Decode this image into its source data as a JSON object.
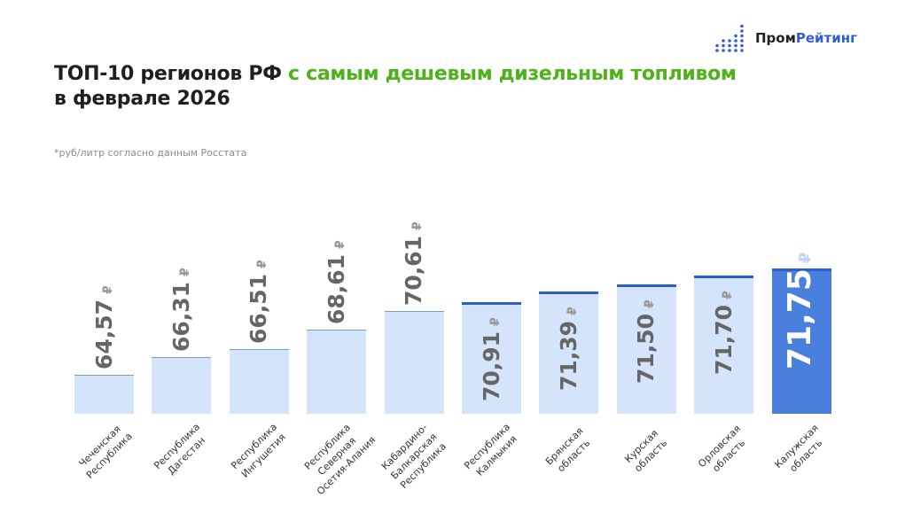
{
  "header": {
    "title_part1": "ТОП-10 регионов РФ ",
    "title_accent": "с самым дешевым дизельным топливом",
    "title_line2": "в феврале 2026",
    "note": "*руб/литр согласно данным Росстата"
  },
  "logo": {
    "part1": "Пром",
    "part2": "Рейтинг",
    "icon": "bar-dots-icon"
  },
  "colors": {
    "accent": "#4db31a",
    "bar": "#d3e4fb",
    "bar_highlight": "#4a80dd",
    "bar_top": "#2c5ed1"
  },
  "chart_data": {
    "type": "bar",
    "title": "ТОП-10 регионов РФ с самым дешевым дизельным топливом в феврале 2026",
    "unit": "₽",
    "categories": [
      "Чеченская\nРеспублика",
      "Республика\nДагестан",
      "Республика\nИнгушетия",
      "Республика\nСеверная\nОсетия-Алания",
      "Кабардино-\nБалкарская\nРеспублика",
      "Республика\nКалмыкия",
      "Брянская\nобласть",
      "Курская\nобласть",
      "Орловская\nобласть",
      "Калужская\nобласть"
    ],
    "values": [
      64.57,
      66.31,
      66.51,
      68.61,
      70.61,
      70.91,
      71.39,
      71.5,
      71.7,
      71.75
    ],
    "labels": [
      "64,57",
      "66,31",
      "66,51",
      "68,61",
      "70,61",
      "70,91",
      "71,39",
      "71,50",
      "71,70",
      "71,75"
    ],
    "highlight_index": 9,
    "grid": false
  }
}
